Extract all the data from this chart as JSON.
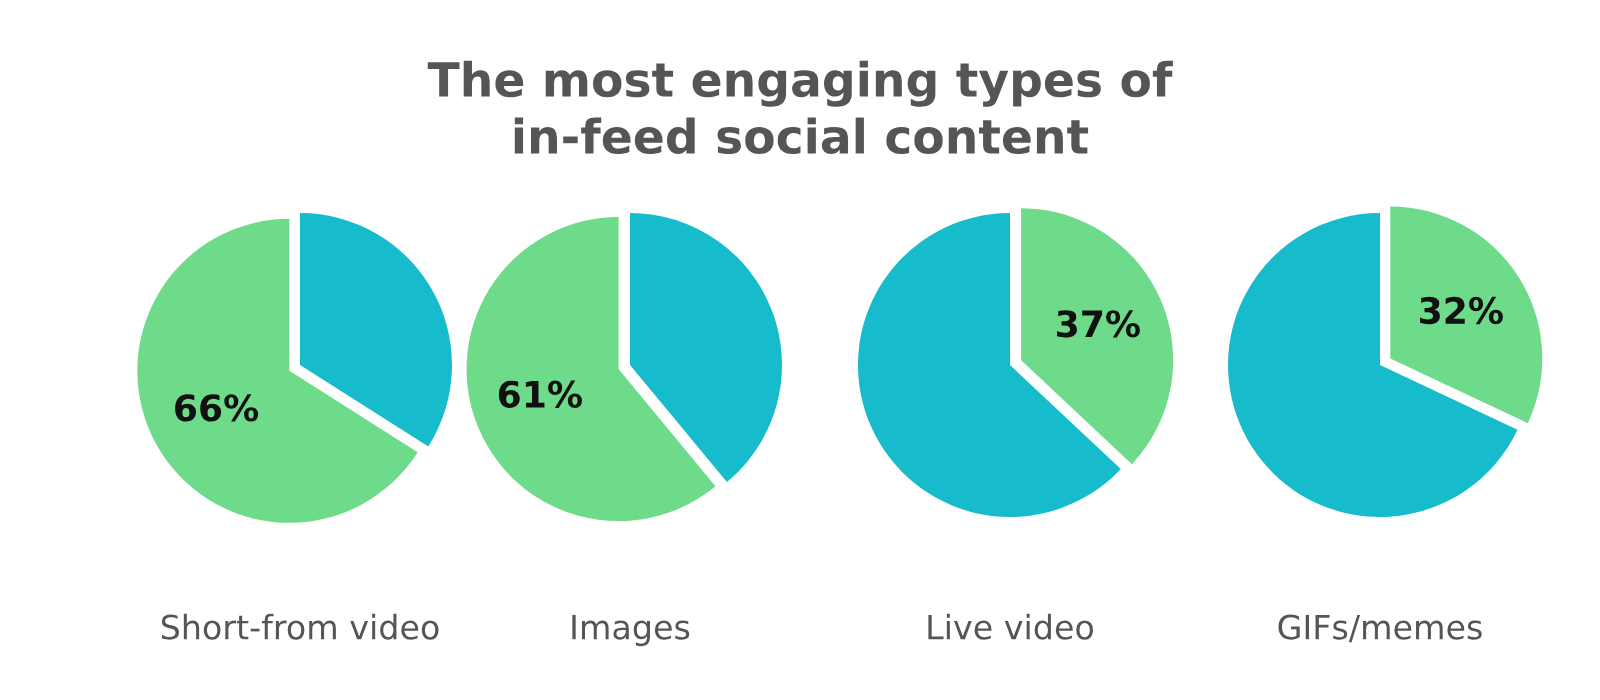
{
  "chart_data": [
    {
      "type": "pie",
      "title": "The most engaging types of\nin-feed social content",
      "xlabel": "Short-from video",
      "categories": [
        null,
        null
      ],
      "values": [
        34,
        66
      ],
      "colors": [
        "#17bccc",
        "#6ddb8a"
      ],
      "value_labels": [
        null,
        "66%"
      ]
    },
    {
      "type": "pie",
      "xlabel": "Images",
      "categories": [
        null,
        null
      ],
      "values": [
        39,
        61
      ],
      "colors": [
        "#17bccc",
        "#6ddb8a"
      ],
      "value_labels": [
        null,
        "61%"
      ]
    },
    {
      "type": "pie",
      "xlabel": "Live video",
      "categories": [
        null,
        null
      ],
      "values": [
        37,
        63
      ],
      "colors": [
        "#6ddb8a",
        "#17bccc"
      ],
      "value_labels": [
        "37%",
        null
      ]
    },
    {
      "type": "pie",
      "xlabel": "GIFs/memes",
      "categories": [
        null,
        null
      ],
      "values": [
        32,
        68
      ],
      "colors": [
        "#6ddb8a",
        "#17bccc"
      ],
      "value_labels": [
        "32%",
        null
      ]
    }
  ]
}
